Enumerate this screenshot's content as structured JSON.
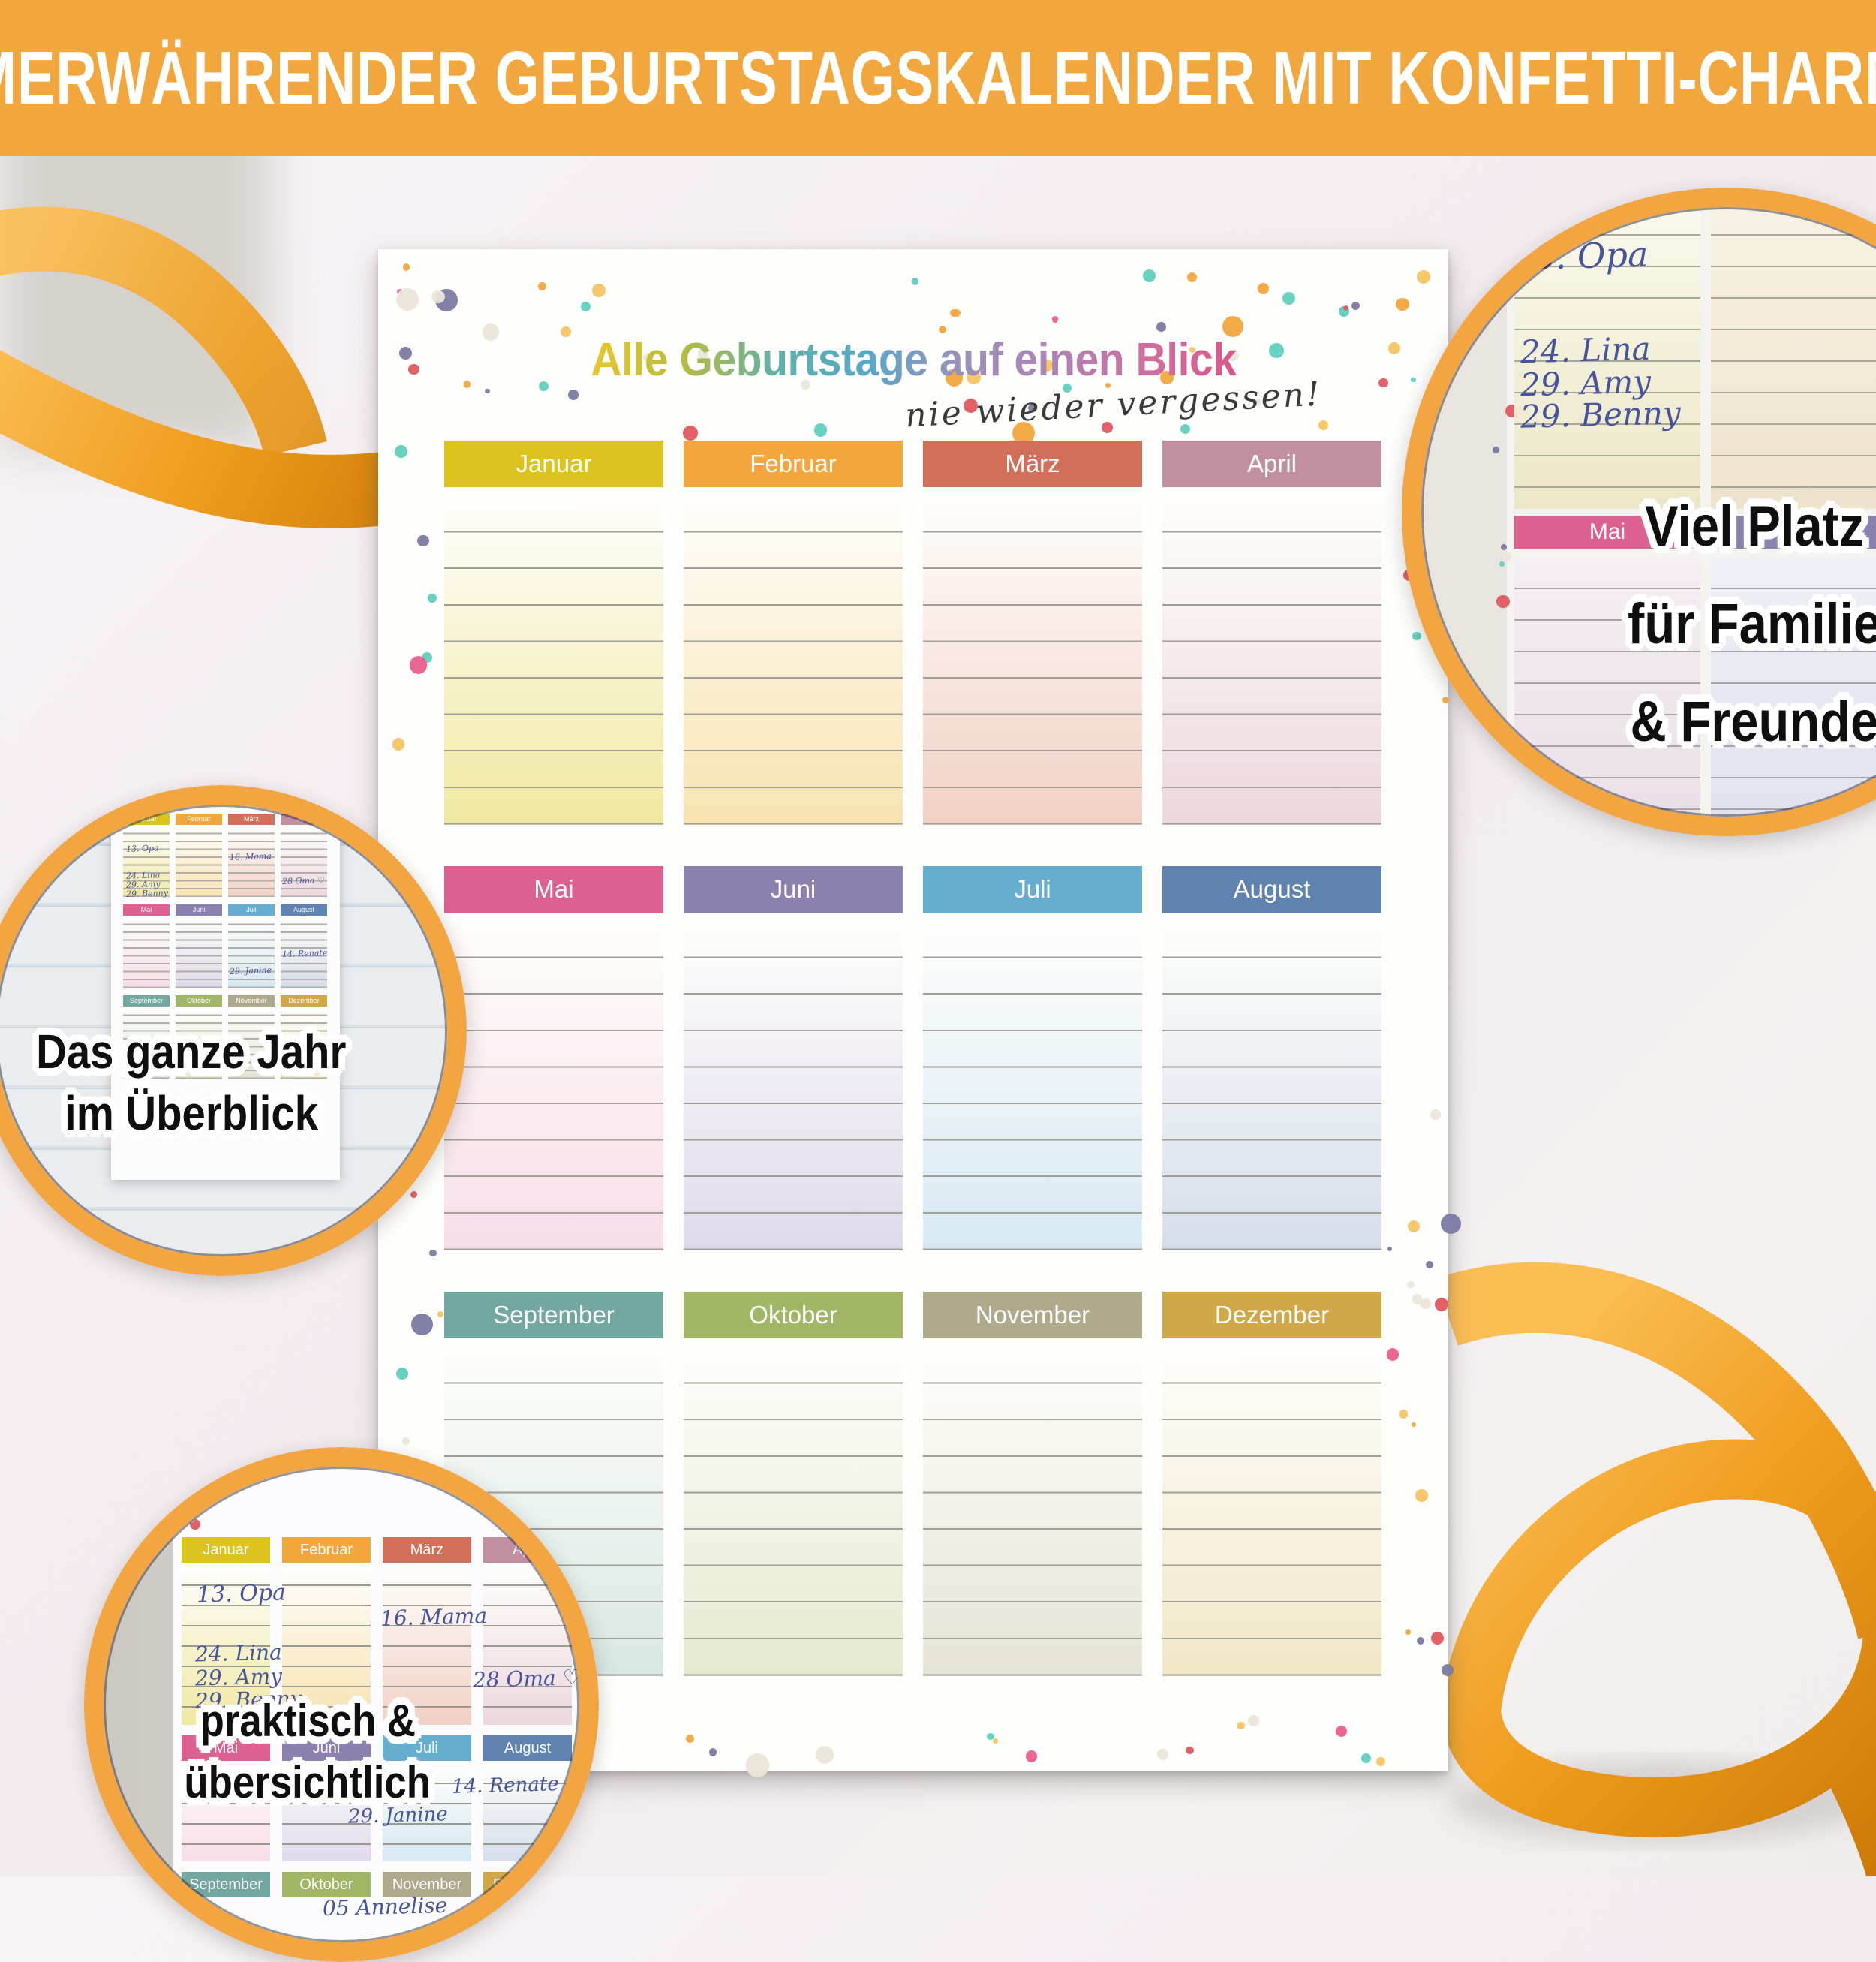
{
  "banner": {
    "text": "IMMERWÄHRENDER GEBURTSTAGSKALENDER MIT KONFETTI-CHARME!",
    "bg": "#f2a73e",
    "text_color": "#ffffff"
  },
  "poster": {
    "title": "Alle Geburtstage auf einen Blick",
    "title_colors": [
      "#e8c62c",
      "#b9bc3e",
      "#5fb0a8",
      "#58a7c8",
      "#9a92b8",
      "#ab84b6",
      "#cf6f9f",
      "#d8568a"
    ],
    "subtitle": "nie wieder vergessen!",
    "months": [
      {
        "name": "Januar",
        "header": "#dcc31d",
        "body": "#f0e8a0"
      },
      {
        "name": "Februar",
        "header": "#f2a63c",
        "body": "#f8e2ae"
      },
      {
        "name": "März",
        "header": "#d26f59",
        "body": "#f2d0c4"
      },
      {
        "name": "April",
        "header": "#c18fa0",
        "body": "#ecd7dd"
      },
      {
        "name": "Mai",
        "header": "#dc6090",
        "body": "#f8dde8"
      },
      {
        "name": "Juni",
        "header": "#8c80af",
        "body": "#dfdaeb"
      },
      {
        "name": "Juli",
        "header": "#66aed0",
        "body": "#d7e8f2"
      },
      {
        "name": "August",
        "header": "#6082b1",
        "body": "#d6deea"
      },
      {
        "name": "September",
        "header": "#72a8a0",
        "body": "#d8e7e2"
      },
      {
        "name": "Oktober",
        "header": "#a2b765",
        "body": "#e4e9ce"
      },
      {
        "name": "November",
        "header": "#b0aa8c",
        "body": "#e6e3d5"
      },
      {
        "name": "Dezember",
        "header": "#d0a847",
        "body": "#f1e7c6"
      }
    ],
    "confetti_colors": [
      "#ea5d8f",
      "#f6c463",
      "#7b7ba3",
      "#5fd0bd",
      "#e0595f",
      "#ece5d8",
      "#f2a73e"
    ]
  },
  "entries": {
    "opa": "13. Opa",
    "lina": "24. Lina",
    "amy": "29. Amy",
    "benny": "29. Benny",
    "mama": "16. Mama",
    "oma": "28 Oma ♡",
    "renate": "14. Renate",
    "janine": "29. Janine",
    "annelise": "05 Annelise"
  },
  "callouts": {
    "top_right": {
      "lines": [
        "Viel Platz",
        "für Familie",
        "& Freunde"
      ]
    },
    "left": {
      "lines": [
        "Das ganze Jahr",
        "im Überblick"
      ]
    },
    "bottom_left": {
      "lines": [
        "praktisch &",
        "übersichtlich"
      ]
    }
  },
  "ribbon": {
    "main": "#ef9d1f",
    "light": "#fbbe55",
    "dark": "#cc7a06"
  },
  "ring_color": "#f2a541",
  "ink_color": "#46549e"
}
